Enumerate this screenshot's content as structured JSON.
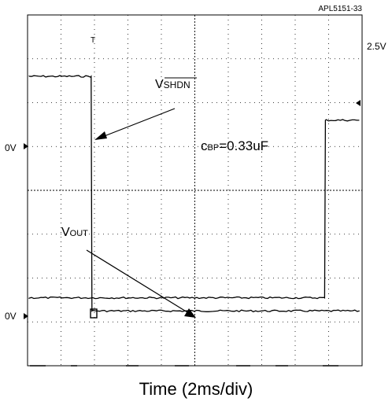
{
  "chart_data": {
    "type": "line",
    "doc_id": "APL5151-33",
    "xlabel": "Time (2ms/div)",
    "x_divisions": 10,
    "y_divisions": 8,
    "grid": true,
    "channel1": {
      "name": "SHDN",
      "label_prefix": "V",
      "label_overbar": "SHDN",
      "ground_marker": "0V",
      "level_marker": "2.5V",
      "low_level_div": 6.6,
      "high_level_div": 1.25,
      "step_time_div": 1.9
    },
    "channel2": {
      "name": "OUT",
      "label_prefix": "V",
      "label_subscript": "OUT",
      "ground_marker": "0V",
      "low_level_div": 1.55,
      "high_level_div": 5.6,
      "step_time_div": 8.88
    },
    "annotation": {
      "prefix": "c",
      "subscript": "BP",
      "value": "=0.33uF"
    }
  }
}
